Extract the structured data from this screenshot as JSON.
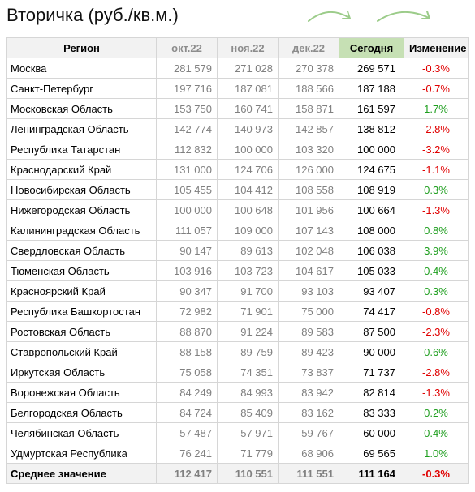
{
  "title": "Вторичка (руб./кв.м.)",
  "colors": {
    "negative": "#e00000",
    "positive": "#1e9e1e",
    "today_header": "#c6e0b4",
    "arrows": "#9ccc8a"
  },
  "headers": [
    "Регион",
    "окт.22",
    "ноя.22",
    "дек.22",
    "Сегодня",
    "Изменение"
  ],
  "rows": [
    {
      "region": "Москва",
      "oct": "281 579",
      "nov": "271 028",
      "dec": "270 378",
      "today": "269 571",
      "change": "-0.3%",
      "sign": "neg"
    },
    {
      "region": "Санкт-Петербург",
      "oct": "197 716",
      "nov": "187 081",
      "dec": "188 566",
      "today": "187 188",
      "change": "-0.7%",
      "sign": "neg"
    },
    {
      "region": "Московская Область",
      "oct": "153 750",
      "nov": "160 741",
      "dec": "158 871",
      "today": "161 597",
      "change": "1.7%",
      "sign": "pos"
    },
    {
      "region": "Ленинградская Область",
      "oct": "142 774",
      "nov": "140 973",
      "dec": "142 857",
      "today": "138 812",
      "change": "-2.8%",
      "sign": "neg"
    },
    {
      "region": "Республика Татарстан",
      "oct": "112 832",
      "nov": "100 000",
      "dec": "103 320",
      "today": "100 000",
      "change": "-3.2%",
      "sign": "neg"
    },
    {
      "region": "Краснодарский Край",
      "oct": "131 000",
      "nov": "124 706",
      "dec": "126 000",
      "today": "124 675",
      "change": "-1.1%",
      "sign": "neg"
    },
    {
      "region": "Новосибирская Область",
      "oct": "105 455",
      "nov": "104 412",
      "dec": "108 558",
      "today": "108 919",
      "change": "0.3%",
      "sign": "pos"
    },
    {
      "region": "Нижегородская Область",
      "oct": "100 000",
      "nov": "100 648",
      "dec": "101 956",
      "today": "100 664",
      "change": "-1.3%",
      "sign": "neg"
    },
    {
      "region": "Калининградская Область",
      "oct": "111 057",
      "nov": "109 000",
      "dec": "107 143",
      "today": "108 000",
      "change": "0.8%",
      "sign": "pos"
    },
    {
      "region": "Свердловская Область",
      "oct": "90 147",
      "nov": "89 613",
      "dec": "102 048",
      "today": "106 038",
      "change": "3.9%",
      "sign": "pos"
    },
    {
      "region": "Тюменская Область",
      "oct": "103 916",
      "nov": "103 723",
      "dec": "104 617",
      "today": "105 033",
      "change": "0.4%",
      "sign": "pos"
    },
    {
      "region": "Красноярский Край",
      "oct": "90 347",
      "nov": "91 700",
      "dec": "93 103",
      "today": "93 407",
      "change": "0.3%",
      "sign": "pos"
    },
    {
      "region": "Республика Башкортостан",
      "oct": "72 982",
      "nov": "71 901",
      "dec": "75 000",
      "today": "74 417",
      "change": "-0.8%",
      "sign": "neg"
    },
    {
      "region": "Ростовская Область",
      "oct": "88 870",
      "nov": "91 224",
      "dec": "89 583",
      "today": "87 500",
      "change": "-2.3%",
      "sign": "neg"
    },
    {
      "region": "Ставропольский Край",
      "oct": "88 158",
      "nov": "89 759",
      "dec": "89 423",
      "today": "90 000",
      "change": "0.6%",
      "sign": "pos"
    },
    {
      "region": "Иркутская Область",
      "oct": "75 058",
      "nov": "74 351",
      "dec": "73 837",
      "today": "71 737",
      "change": "-2.8%",
      "sign": "neg"
    },
    {
      "region": "Воронежская Область",
      "oct": "84 249",
      "nov": "84 993",
      "dec": "83 942",
      "today": "82 814",
      "change": "-1.3%",
      "sign": "neg"
    },
    {
      "region": "Белгородская Область",
      "oct": "84 724",
      "nov": "85 409",
      "dec": "83 162",
      "today": "83 333",
      "change": "0.2%",
      "sign": "pos"
    },
    {
      "region": "Челябинская Область",
      "oct": "57 487",
      "nov": "57 971",
      "dec": "59 767",
      "today": "60 000",
      "change": "0.4%",
      "sign": "pos"
    },
    {
      "region": "Удмуртская Республика",
      "oct": "76 241",
      "nov": "71 779",
      "dec": "68 906",
      "today": "69 565",
      "change": "1.0%",
      "sign": "pos"
    }
  ],
  "average": {
    "region": "Среднее значение",
    "oct": "112 417",
    "nov": "110 551",
    "dec": "111 551",
    "today": "111 164",
    "change": "-0.3%",
    "sign": "neg"
  }
}
